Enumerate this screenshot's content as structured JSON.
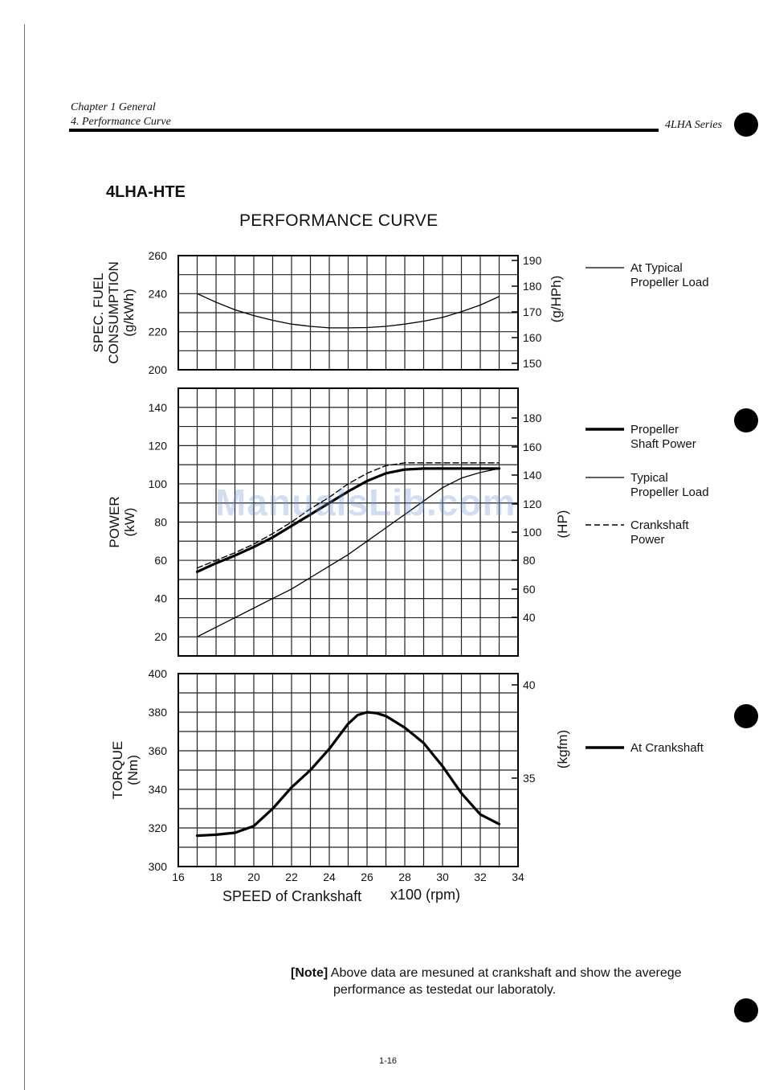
{
  "header": {
    "chapter": "Chapter 1 General",
    "section": "4. Performance Curve",
    "series": "4LHA Series"
  },
  "model": "4LHA-HTE",
  "footer": {
    "note_label": "[Note]",
    "note_line1": " Above data are mesuned at crankshaft and show the averege",
    "note_line2": "performance as testedat our laboratoly.",
    "page_number": "1-16"
  },
  "watermark": "ManualsLib.com",
  "chart_data": {
    "type": "line",
    "title": "PERFORMANCE CURVE",
    "xlabel": "SPEED of Crankshaft",
    "xunit": "x100  (rpm)",
    "x_ticks": [
      "16",
      "18",
      "20",
      "22",
      "24",
      "26",
      "28",
      "30",
      "32",
      "34"
    ],
    "xlim": [
      16,
      34
    ],
    "grid": true,
    "panels": [
      {
        "id": "fuel",
        "ylabel": "SPEC. FUEL",
        "ylabel2": "CONSUMPTION",
        "yunit": "(g/kWh)",
        "ylim": [
          200,
          260
        ],
        "y_ticks": [
          "200",
          "220",
          "240",
          "260"
        ],
        "right_label": "(g/HPh)",
        "right_ticks": [
          "150",
          "160",
          "170",
          "180",
          "190"
        ],
        "series": [
          {
            "name": "At Typical Propeller Load",
            "style": "thin",
            "x": [
              17,
              18,
              19,
              20,
              21,
              22,
              23,
              24,
              25,
              26,
              27,
              28,
              29,
              30,
              31,
              32,
              33
            ],
            "y": [
              240,
              235.5,
              231.5,
              228.5,
              226,
              224,
              222.8,
              222,
              222,
              222.2,
              222.8,
              224,
              225.5,
              227.5,
              230.5,
              234,
              238.5
            ]
          }
        ]
      },
      {
        "id": "power",
        "ylabel": "POWER",
        "yunit": "(kW)",
        "ylim": [
          10,
          150
        ],
        "y_ticks": [
          "20",
          "40",
          "60",
          "80",
          "100",
          "120",
          "140"
        ],
        "right_label": "(HP)",
        "right_ticks": [
          "40",
          "60",
          "80",
          "100",
          "120",
          "140",
          "160",
          "180"
        ],
        "series": [
          {
            "name": "Propeller Shaft Power",
            "style": "thick",
            "x": [
              17,
              18,
              19,
              20,
              21,
              22,
              23,
              24,
              25,
              26,
              27,
              28,
              29,
              30,
              31,
              32,
              33
            ],
            "y": [
              54,
              58.5,
              62.5,
              67,
              72,
              78,
              84,
              90,
              96,
              101.5,
              105.5,
              107.5,
              108,
              108,
              108,
              108,
              108
            ]
          },
          {
            "name": "Typical Propeller Load",
            "style": "thin",
            "x": [
              17,
              18,
              19,
              20,
              21,
              22,
              23,
              24,
              25,
              26,
              27,
              28,
              29,
              30,
              31,
              32,
              33
            ],
            "y": [
              20,
              25,
              30,
              35,
              40,
              45,
              51,
              57,
              63,
              70,
              77,
              84,
              91,
              98,
              103,
              106,
              108
            ]
          },
          {
            "name": "Crankshaft Power",
            "style": "dashed",
            "x": [
              17,
              18,
              19,
              20,
              21,
              22,
              23,
              24,
              25,
              26,
              27,
              28,
              29,
              30,
              31,
              32,
              33
            ],
            "y": [
              56,
              60,
              64,
              68.5,
              74,
              80,
              87,
              93,
              100,
              105.5,
              109.5,
              111,
              111,
              111,
              111,
              111,
              111
            ]
          }
        ]
      },
      {
        "id": "torque",
        "ylabel": "TORQUE",
        "yunit": "(Nm)",
        "ylim": [
          300,
          400
        ],
        "y_ticks": [
          "300",
          "320",
          "340",
          "360",
          "380",
          "400"
        ],
        "right_label": "(kgfm)",
        "right_ticks": [
          "35",
          "40"
        ],
        "series": [
          {
            "name": "At Crankshaft",
            "style": "thick",
            "x": [
              17,
              18,
              19,
              20,
              21,
              22,
              23,
              24,
              25,
              25.5,
              26,
              26.5,
              27,
              28,
              29,
              30,
              31,
              32,
              33
            ],
            "y": [
              316,
              316.5,
              317.5,
              321,
              330,
              341,
              350,
              361,
              374,
              378.5,
              380,
              379.5,
              378,
              372,
              364,
              352,
              338,
              327,
              322
            ]
          }
        ]
      }
    ],
    "legend": [
      {
        "panel": "fuel",
        "label1": "At Typical",
        "label2": "Propeller Load",
        "style": "thin"
      },
      {
        "panel": "power",
        "label1": "Propeller",
        "label2": "Shaft Power",
        "style": "thick"
      },
      {
        "panel": "power",
        "label1": "Typical",
        "label2": "Propeller Load",
        "style": "thin"
      },
      {
        "panel": "power",
        "label1": "Crankshaft",
        "label2": "Power",
        "style": "dashed"
      },
      {
        "panel": "torque",
        "label1": "At Crankshaft",
        "label2": "",
        "style": "thick"
      }
    ]
  }
}
